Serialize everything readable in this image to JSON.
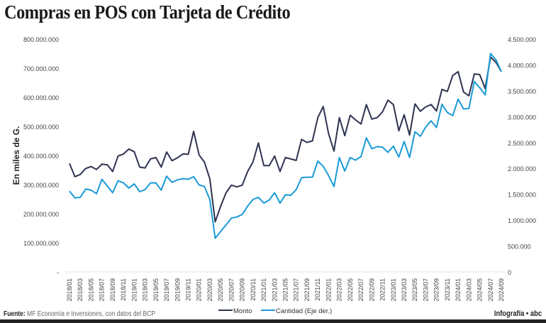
{
  "chart_data": {
    "type": "line",
    "title": "Compras en POS con Tarjeta de Crédito",
    "ylabel": "En miles de G.",
    "xlabel": "",
    "categories": [
      "2018/01",
      "2018/02",
      "2018/03",
      "2018/04",
      "2018/05",
      "2018/06",
      "2018/07",
      "2018/08",
      "2018/09",
      "2018/10",
      "2018/11",
      "2018/12",
      "2019/01",
      "2019/02",
      "2019/03",
      "2019/04",
      "2019/05",
      "2019/06",
      "2019/07",
      "2019/08",
      "2019/09",
      "2019/10",
      "2019/11",
      "2019/12",
      "2020/01",
      "2020/02",
      "2020/03",
      "2020/04",
      "2020/05",
      "2020/06",
      "2020/07",
      "2020/08",
      "2020/09",
      "2020/10",
      "2020/11",
      "2020/12",
      "2021/01",
      "2021/02",
      "2021/03",
      "2021/04",
      "2021/05",
      "2021/06",
      "2021/07",
      "2021/08",
      "2021/09",
      "2021/10",
      "2021/11",
      "2021/12",
      "2022/01",
      "2022/02",
      "2022/03",
      "2022/04",
      "2022/05",
      "2022/06",
      "2022/07",
      "2022/08",
      "2022/09",
      "2022/10",
      "2022/11",
      "2022/12",
      "2023/01",
      "2023/02",
      "2023/03",
      "2023/04",
      "2023/05",
      "2023/06",
      "2023/07",
      "2023/08",
      "2023/09",
      "2023/10",
      "2023/11",
      "2023/12",
      "2024/01",
      "2024/02",
      "2024/03",
      "2024/04",
      "2024/05",
      "2024/06",
      "2024/07",
      "2024/08",
      "2024/09"
    ],
    "x_tick_labels": [
      "2018/01",
      "2018/03",
      "2018/05",
      "2018/07",
      "2018/09",
      "2018/11",
      "2019/01",
      "2019/03",
      "2019/05",
      "2019/07",
      "2019/09",
      "2019/11",
      "2020/01",
      "2020/03",
      "2020/05",
      "2020/07",
      "2020/09",
      "2020/11",
      "2021/01",
      "2021/03",
      "2021/05",
      "2021/07",
      "2021/09",
      "2021/11",
      "2022/01",
      "2022/03",
      "2022/05",
      "2022/07",
      "2022/09",
      "2022/11",
      "2023/01",
      "2023/03",
      "2023/05",
      "2023/07",
      "2023/09",
      "2023/11",
      "2024/01",
      "2024/03",
      "2024/05",
      "2024/07",
      "2024/09"
    ],
    "y_left": {
      "range": [
        0,
        800000000
      ],
      "ticks": [
        "-",
        "100.000.000",
        "200.000.000",
        "300.000.000",
        "400.000.000",
        "500.000.000",
        "600.000.000",
        "700.000.000",
        "800.000.000"
      ]
    },
    "y_right": {
      "range": [
        0,
        4500000
      ],
      "ticks": [
        "0",
        "500.000",
        "1.000.000",
        "1.500.000",
        "2.000.000",
        "2.500.000",
        "3.000.000",
        "3.500.000",
        "4.000.000",
        "4.500.000"
      ]
    },
    "series": [
      {
        "name": "Monto",
        "axis": "left",
        "color": "#2e3350",
        "unit": "millones",
        "values": [
          373,
          327,
          335,
          355,
          362,
          352,
          370,
          368,
          345,
          398,
          405,
          422,
          413,
          360,
          357,
          388,
          393,
          360,
          412,
          382,
          392,
          405,
          404,
          483,
          402,
          377,
          320,
          172,
          225,
          272,
          298,
          292,
          298,
          345,
          378,
          443,
          365,
          365,
          398,
          345,
          393,
          388,
          383,
          455,
          445,
          450,
          530,
          568,
          475,
          415,
          530,
          468,
          538,
          522,
          508,
          575,
          525,
          530,
          550,
          590,
          575,
          485,
          540,
          470,
          577,
          552,
          567,
          575,
          553,
          627,
          620,
          675,
          688,
          618,
          605,
          680,
          678,
          630,
          738,
          720,
          688
        ]
      },
      {
        "name": "Cantidad (Eje der.)",
        "axis": "right",
        "color": "#1a9ad6",
        "unit": "miles",
        "values": [
          1560,
          1430,
          1440,
          1600,
          1580,
          1510,
          1790,
          1660,
          1530,
          1760,
          1720,
          1620,
          1700,
          1550,
          1590,
          1720,
          1720,
          1580,
          1850,
          1730,
          1780,
          1800,
          1790,
          1840,
          1680,
          1650,
          1400,
          650,
          780,
          910,
          1040,
          1060,
          1110,
          1270,
          1400,
          1440,
          1330,
          1390,
          1530,
          1330,
          1490,
          1480,
          1590,
          1820,
          1830,
          1830,
          2140,
          2040,
          1860,
          1650,
          2210,
          1950,
          2210,
          2160,
          2230,
          2590,
          2380,
          2420,
          2410,
          2310,
          2430,
          2220,
          2520,
          2210,
          2710,
          2620,
          2800,
          2920,
          2790,
          3240,
          3080,
          3020,
          3340,
          3150,
          3160,
          3680,
          3560,
          3420,
          4220,
          4100,
          3870
        ]
      }
    ],
    "legend_position": "bottom-center",
    "grid": false
  },
  "footer": {
    "source_label": "Fuente:",
    "source_text": " MF Economía e Inversiones, con datos del BCP",
    "credit": "Infografía • abc"
  }
}
